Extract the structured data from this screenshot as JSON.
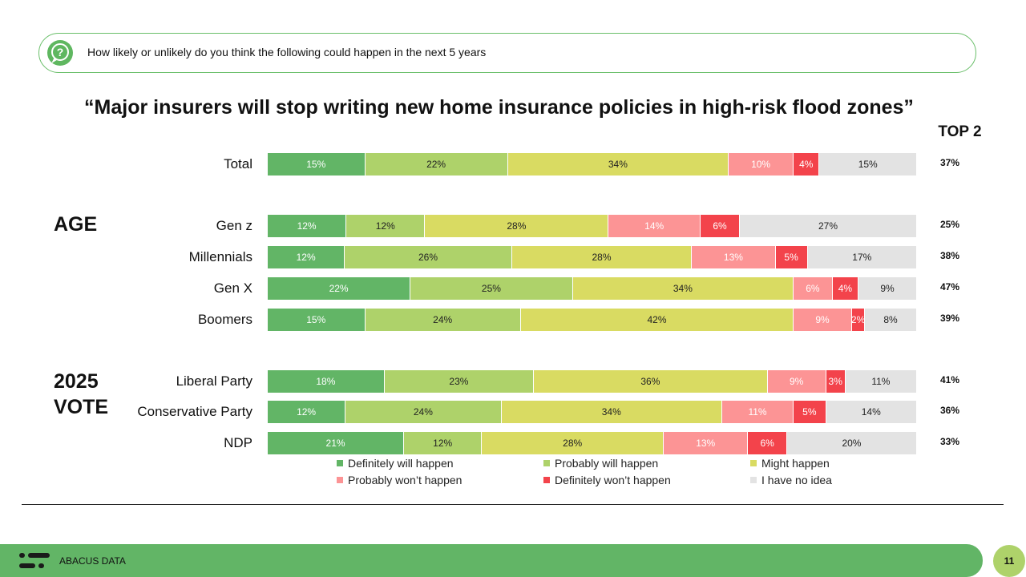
{
  "question": {
    "text": "How likely or unlikely do you think the following could happen in the next 5 years",
    "icon": "question-bubble-icon"
  },
  "header_right": "TOP 2",
  "chart_data": {
    "type": "bar",
    "orientation": "horizontal",
    "stacked": true,
    "normalized": true,
    "title": "“Major insurers will stop writing new home insurance policies in high-risk flood zones”",
    "groups": [
      {
        "label": "",
        "rows": [
          "Total"
        ]
      },
      {
        "label": "AGE",
        "rows": [
          "Gen z",
          "Millennials",
          "Gen X",
          "Boomers"
        ]
      },
      {
        "label": "2025 VOTE",
        "rows": [
          "Liberal Party",
          "Conservative Party",
          "NDP"
        ]
      }
    ],
    "categories": [
      "Total",
      "Gen z",
      "Millennials",
      "Gen X",
      "Boomers",
      "Liberal Party",
      "Conservative Party",
      "NDP"
    ],
    "series": [
      {
        "name": "Definitely will happen",
        "color": "#62b566",
        "values": [
          15,
          12,
          12,
          22,
          15,
          18,
          12,
          21
        ]
      },
      {
        "name": "Probably will happen",
        "color": "#aed26a",
        "values": [
          22,
          12,
          26,
          25,
          24,
          23,
          24,
          12
        ]
      },
      {
        "name": "Might happen",
        "color": "#d9db62",
        "values": [
          34,
          28,
          28,
          34,
          42,
          36,
          34,
          28
        ]
      },
      {
        "name": "Probably won’t happen",
        "color": "#fc9495",
        "values": [
          10,
          14,
          13,
          6,
          9,
          9,
          11,
          13
        ]
      },
      {
        "name": "Definitely won’t happen",
        "color": "#f3434b",
        "values": [
          4,
          6,
          5,
          4,
          2,
          3,
          5,
          6
        ]
      },
      {
        "name": "I have no idea",
        "color": "#e3e3e3",
        "values": [
          15,
          27,
          17,
          9,
          8,
          11,
          14,
          20
        ]
      }
    ],
    "top2": [
      "37%",
      "25%",
      "38%",
      "47%",
      "39%",
      "41%",
      "36%",
      "33%"
    ],
    "legend_position": "bottom"
  },
  "footer": {
    "brand": "ABACUS DATA",
    "page": "11"
  }
}
